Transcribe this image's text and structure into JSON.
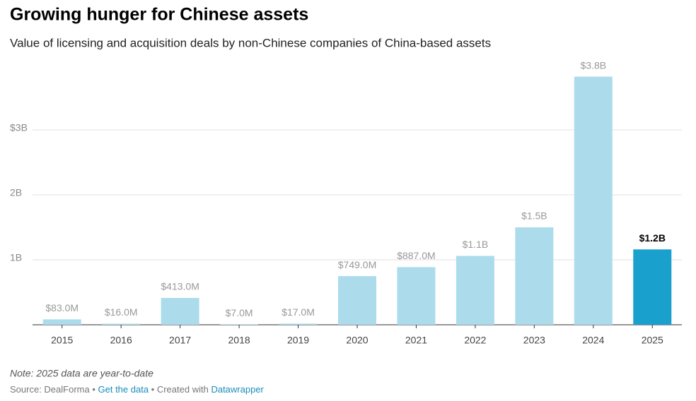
{
  "chart_data": {
    "type": "bar",
    "title": "Growing hunger for Chinese assets",
    "subtitle": "Value of licensing and acquisition deals by non-Chinese companies of China-based assets",
    "categories": [
      "2015",
      "2016",
      "2017",
      "2018",
      "2019",
      "2020",
      "2021",
      "2022",
      "2023",
      "2024",
      "2025"
    ],
    "values": [
      0.083,
      0.016,
      0.413,
      0.007,
      0.017,
      0.749,
      0.887,
      1.06,
      1.5,
      3.82,
      1.16
    ],
    "value_labels": [
      "$83.0M",
      "$16.0M",
      "$413.0M",
      "$7.0M",
      "$17.0M",
      "$749.0M",
      "$887.0M",
      "$1.1B",
      "$1.5B",
      "$3.8B",
      "$1.2B"
    ],
    "color": "#acdcec",
    "highlight": {
      "index": 10,
      "color": "#1aa0cc"
    },
    "ylim": [
      0,
      4
    ],
    "yticks": [
      {
        "value": 1,
        "label": "1B"
      },
      {
        "value": 2,
        "label": "2B"
      },
      {
        "value": 3,
        "label": "$3B"
      }
    ],
    "grid": true,
    "note": "Note: 2025 data are year-to-date",
    "source": "Source: DealForma",
    "data_link": "Get the data",
    "credit": "Created with",
    "credit_link": "Datawrapper"
  }
}
